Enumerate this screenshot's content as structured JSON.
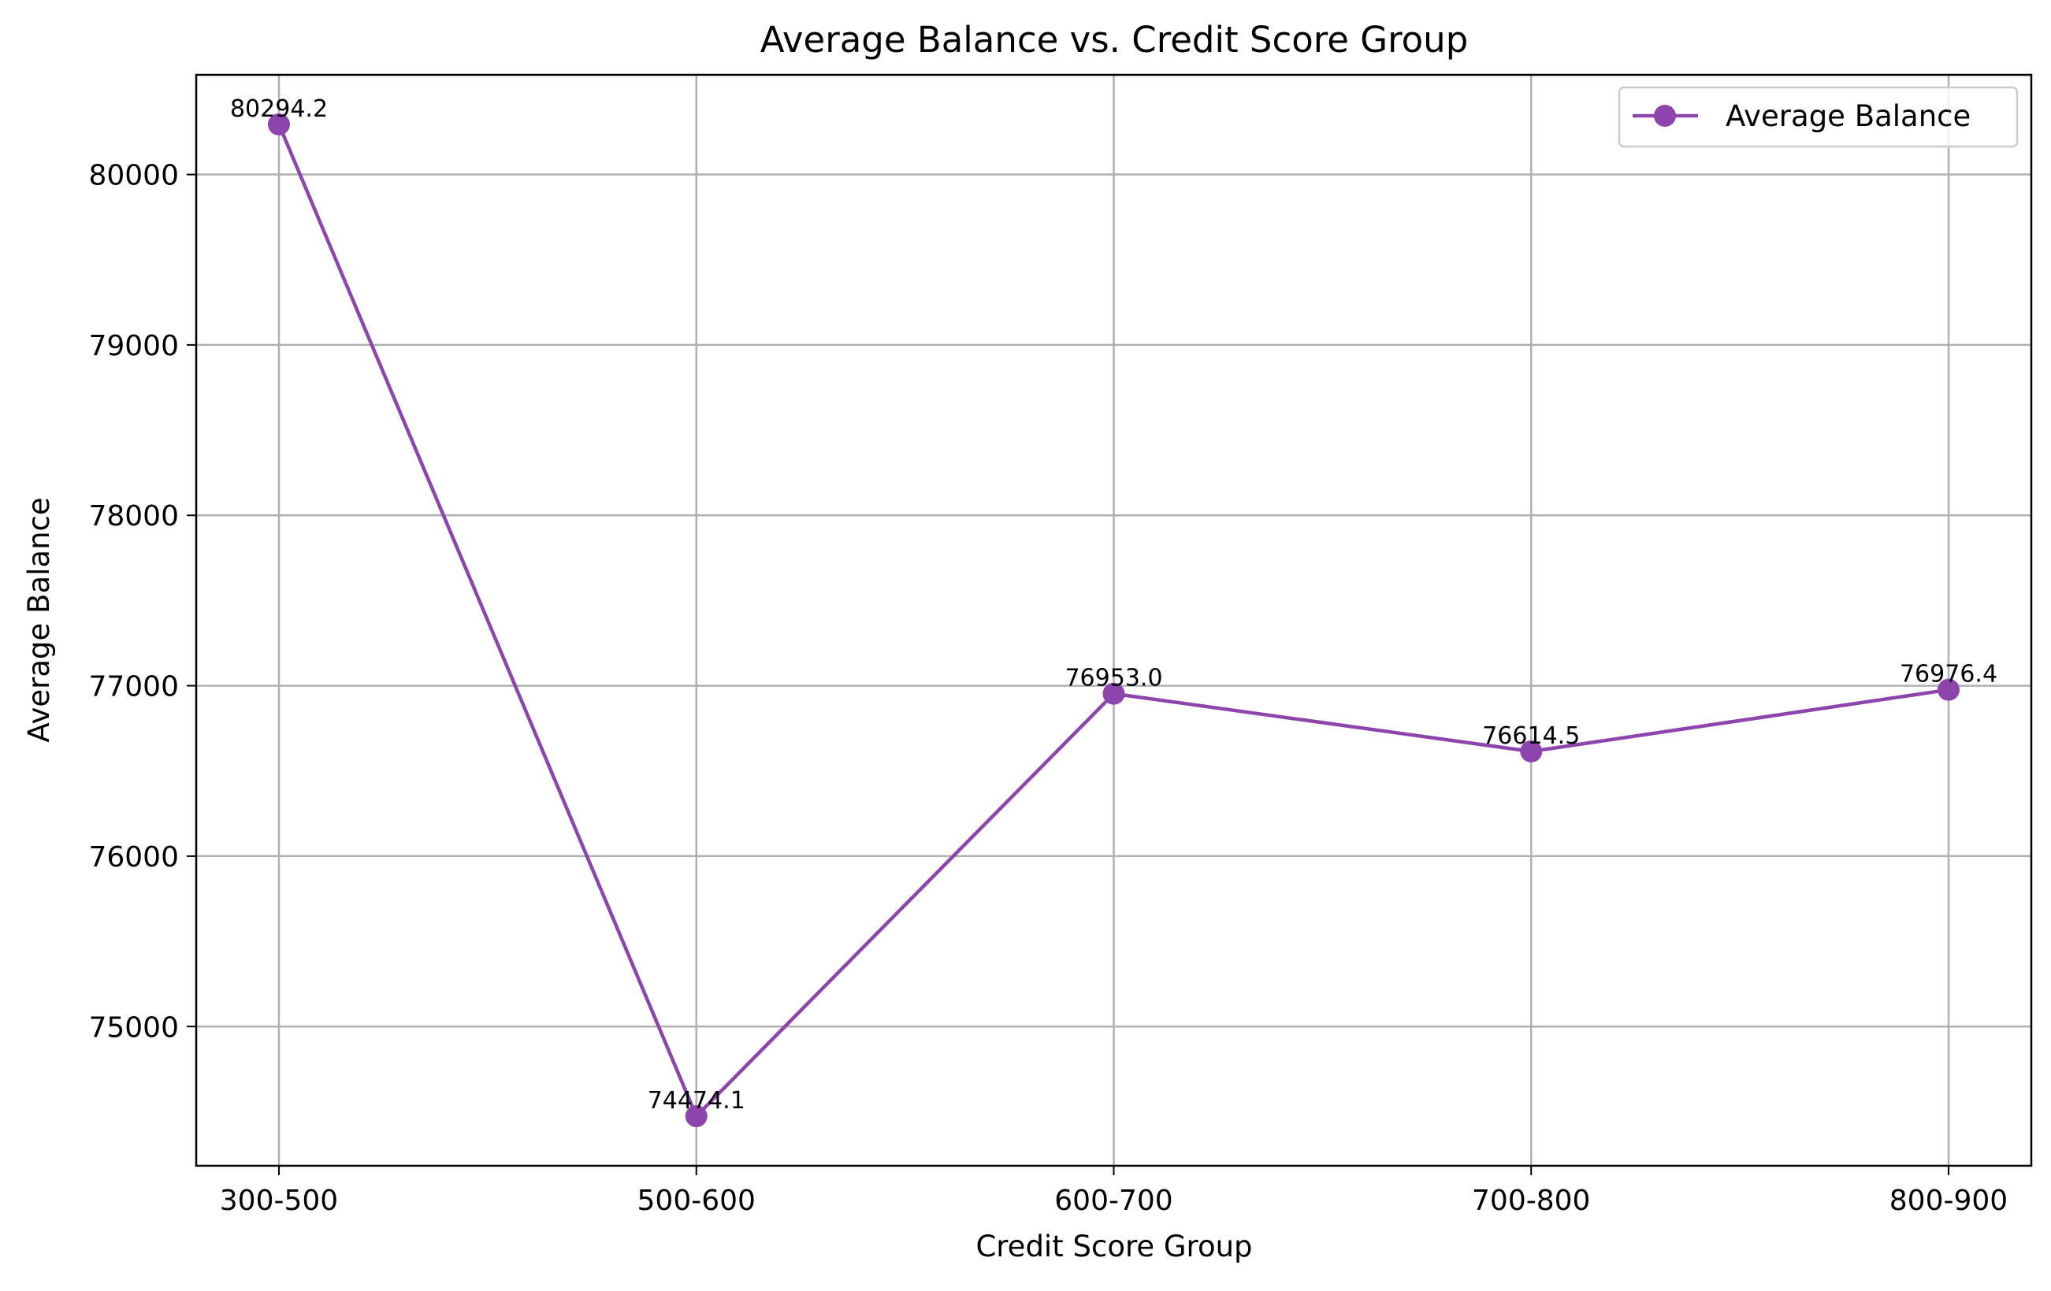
{
  "chart_data": {
    "type": "line",
    "title": "Average Balance vs. Credit Score Group",
    "xlabel": "Credit Score Group",
    "ylabel": "Average Balance",
    "categories": [
      "300-500",
      "500-600",
      "600-700",
      "700-800",
      "800-900"
    ],
    "series": [
      {
        "name": "Average Balance",
        "values": [
          80294.2,
          74474.1,
          76953.0,
          76614.5,
          76976.4
        ],
        "value_labels": [
          "80294.2",
          "74474.1",
          "76953.0",
          "76614.5",
          "76976.4"
        ],
        "color": "#8e44ad",
        "marker": "circle"
      }
    ],
    "yticks": [
      75000,
      76000,
      77000,
      78000,
      79000,
      80000
    ],
    "ytick_labels": [
      "75000",
      "76000",
      "77000",
      "78000",
      "79000",
      "80000"
    ],
    "ylim": [
      74183,
      80585
    ],
    "grid": true,
    "legend_position": "top-right"
  }
}
